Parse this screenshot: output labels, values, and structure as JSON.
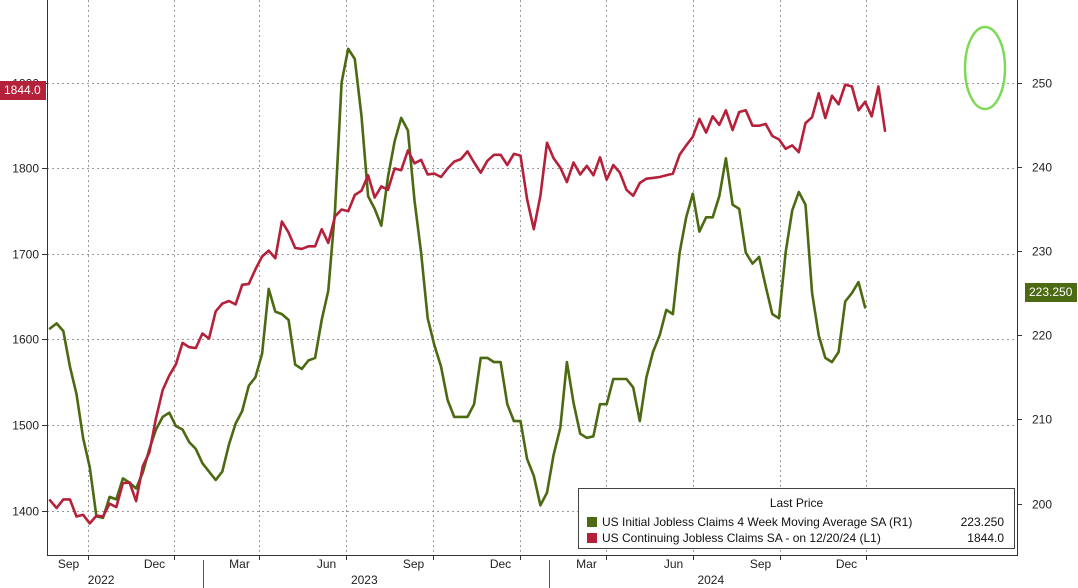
{
  "chart_data": {
    "type": "line",
    "title": "",
    "legend": {
      "title": "Last Price",
      "placement": "bottom-right",
      "entries": [
        {
          "name": "US Initial Jobless Claims 4 Week Moving Average SA  (R1)",
          "value": "223.250",
          "color": "#4b6a12"
        },
        {
          "name": "US Continuing Jobless Claims SA -  on 12/20/24  (L1)",
          "value": "1844.0",
          "color": "#b5203a"
        }
      ]
    },
    "left_axis": {
      "ticks": [
        "1400",
        "1500",
        "1600",
        "1700",
        "1800",
        "1900"
      ],
      "ylim": [
        1348,
        1997
      ]
    },
    "right_axis": {
      "ticks": [
        "200",
        "210",
        "220",
        "230",
        "240",
        "250"
      ],
      "ylim": [
        193.9,
        259.8
      ]
    },
    "x_month_labels": [
      "Sep",
      "Dec",
      "Mar",
      "Jun",
      "Sep",
      "Dec",
      "Mar",
      "Jun",
      "Sep",
      "Dec"
    ],
    "x_year_labels": [
      "2022",
      "2023",
      "2024"
    ],
    "last_value_tags": {
      "left": "1844.0",
      "right": "223.250"
    },
    "grid": true,
    "highlight": "circle around the latest continuing claims readings",
    "series": [
      {
        "name": "US Continuing Jobless Claims SA",
        "axis": "left",
        "color": "#b5203a",
        "x_start": "2022-07-23",
        "interval_days": 7,
        "values": [
          1412,
          1403,
          1413,
          1413,
          1393,
          1395,
          1385,
          1394,
          1393,
          1408,
          1404,
          1432,
          1433,
          1411,
          1452,
          1468,
          1508,
          1541,
          1558,
          1571,
          1596,
          1591,
          1590,
          1607,
          1601,
          1633,
          1642,
          1645,
          1641,
          1664,
          1665,
          1682,
          1697,
          1704,
          1695,
          1738,
          1725,
          1707,
          1706,
          1709,
          1709,
          1729,
          1713,
          1744,
          1752,
          1750,
          1769,
          1774,
          1792,
          1766,
          1779,
          1775,
          1800,
          1798,
          1821,
          1806,
          1810,
          1793,
          1794,
          1790,
          1800,
          1808,
          1811,
          1820,
          1807,
          1795,
          1809,
          1816,
          1816,
          1804,
          1817,
          1815,
          1764,
          1729,
          1768,
          1830,
          1812,
          1801,
          1784,
          1807,
          1793,
          1803,
          1792,
          1813,
          1787,
          1804,
          1795,
          1775,
          1768,
          1783,
          1788,
          1789,
          1790,
          1792,
          1794,
          1816,
          1827,
          1837,
          1858,
          1842,
          1861,
          1851,
          1868,
          1845,
          1866,
          1868,
          1850,
          1850,
          1852,
          1838,
          1834,
          1823,
          1827,
          1819,
          1853,
          1860,
          1888,
          1859,
          1885,
          1875,
          1898,
          1896,
          1868,
          1878,
          1861,
          1896,
          1844
        ]
      },
      {
        "name": "US Initial Jobless Claims 4 Week Moving Average SA",
        "axis": "right",
        "color": "#4b6a12",
        "x_start": "2022-07-23",
        "interval_days": 7,
        "values": [
          220.8,
          221.4,
          220.5,
          216.3,
          213.0,
          207.8,
          204.3,
          198.5,
          198.3,
          200.8,
          200.5,
          203.0,
          202.5,
          201.8,
          203.7,
          206.5,
          208.8,
          210.3,
          210.8,
          209.2,
          208.8,
          207.3,
          206.5,
          204.8,
          203.8,
          202.8,
          203.8,
          207.0,
          209.5,
          211.0,
          214.0,
          215.0,
          217.8,
          225.5,
          222.8,
          222.5,
          221.8,
          216.5,
          216.0,
          217.0,
          217.3,
          221.8,
          225.3,
          234.8,
          250.0,
          254.0,
          252.8,
          246.0,
          236.5,
          235.0,
          233.0,
          238.8,
          243.0,
          245.8,
          244.3,
          236.0,
          229.8,
          222.0,
          218.8,
          216.3,
          212.3,
          210.3,
          210.3,
          210.3,
          211.8,
          217.3,
          217.3,
          216.8,
          216.8,
          211.8,
          209.8,
          209.8,
          205.3,
          203.3,
          199.8,
          201.3,
          205.8,
          209.0,
          216.8,
          212.0,
          208.3,
          207.8,
          208.0,
          211.8,
          211.8,
          214.8,
          214.8,
          214.8,
          213.8,
          209.8,
          215.0,
          218.0,
          220.0,
          223.0,
          222.5,
          229.8,
          234.0,
          236.8,
          232.3,
          234.0,
          234.0,
          236.5,
          241.0,
          235.5,
          235.0,
          229.8,
          228.5,
          229.3,
          225.8,
          222.5,
          222.0,
          229.8,
          234.8,
          237.0,
          235.5,
          225.0,
          220.0,
          217.3,
          216.8,
          218.0,
          224.0,
          225.0,
          226.3,
          223.3
        ]
      }
    ]
  }
}
